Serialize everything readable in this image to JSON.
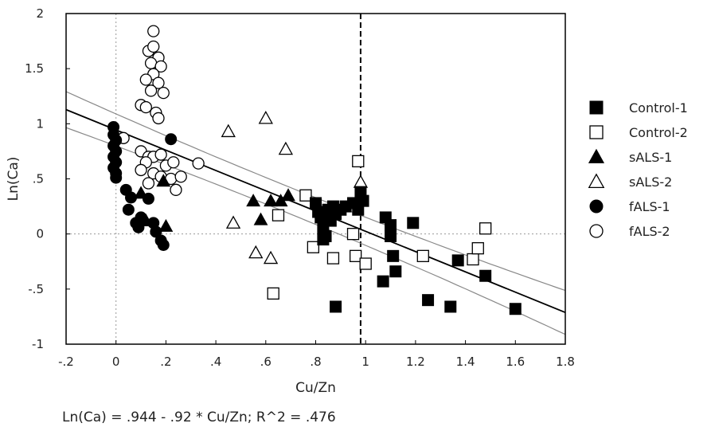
{
  "chart_data": {
    "type": "scatter",
    "title": "",
    "xlabel": "Cu/Zn",
    "ylabel": "Ln(Ca)",
    "xlim": [
      -0.2,
      1.8
    ],
    "ylim": [
      -1,
      2
    ],
    "x_ticks": [
      {
        "value": -0.2,
        "label": "-.2"
      },
      {
        "value": 0,
        "label": "0"
      },
      {
        "value": 0.2,
        "label": ".2"
      },
      {
        "value": 0.4,
        "label": ".4"
      },
      {
        "value": 0.6,
        "label": ".6"
      },
      {
        "value": 0.8,
        "label": ".8"
      },
      {
        "value": 1.0,
        "label": "1"
      },
      {
        "value": 1.2,
        "label": "1.2"
      },
      {
        "value": 1.4,
        "label": "1.4"
      },
      {
        "value": 1.6,
        "label": "1.6"
      },
      {
        "value": 1.8,
        "label": "1.8"
      }
    ],
    "y_ticks": [
      {
        "value": -1,
        "label": "-1"
      },
      {
        "value": -0.5,
        "label": "-.5"
      },
      {
        "value": 0,
        "label": "0"
      },
      {
        "value": 0.5,
        "label": ".5"
      },
      {
        "value": 1,
        "label": "1"
      },
      {
        "value": 1.5,
        "label": "1.5"
      },
      {
        "value": 2,
        "label": "2"
      }
    ],
    "grid": false,
    "reference_lines": {
      "x_zero": 0,
      "y_zero": 0,
      "x_cutoff": 0.98
    },
    "regression": {
      "intercept": 0.944,
      "slope": -0.92,
      "r_squared": 0.476,
      "equation": "Ln(Ca) = .944 - .92 * Cu/Zn; R^2 = .476"
    },
    "legend_position": "right",
    "series": [
      {
        "name": "Control-1",
        "marker": "filled-square",
        "points": [
          [
            0.8,
            0.28
          ],
          [
            0.81,
            0.2
          ],
          [
            0.82,
            0.15
          ],
          [
            0.83,
            0.05
          ],
          [
            0.84,
            -0.02
          ],
          [
            0.85,
            0.22
          ],
          [
            0.86,
            0.12
          ],
          [
            0.87,
            0.25
          ],
          [
            0.88,
            0.18
          ],
          [
            0.9,
            0.22
          ],
          [
            0.92,
            0.25
          ],
          [
            0.95,
            0.28
          ],
          [
            0.97,
            0.22
          ],
          [
            0.99,
            0.3
          ],
          [
            0.98,
            0.38
          ],
          [
            0.83,
            -0.05
          ],
          [
            0.88,
            -0.66
          ],
          [
            1.07,
            -0.43
          ],
          [
            1.08,
            0.15
          ],
          [
            1.1,
            0.08
          ],
          [
            1.1,
            -0.02
          ],
          [
            1.11,
            -0.2
          ],
          [
            1.12,
            -0.34
          ],
          [
            1.19,
            0.1
          ],
          [
            1.25,
            -0.6
          ],
          [
            1.34,
            -0.66
          ],
          [
            1.37,
            -0.24
          ],
          [
            1.48,
            -0.38
          ],
          [
            1.6,
            -0.68
          ]
        ]
      },
      {
        "name": "Control-2",
        "marker": "open-square",
        "points": [
          [
            0.65,
            0.17
          ],
          [
            0.63,
            -0.54
          ],
          [
            0.76,
            0.35
          ],
          [
            0.79,
            -0.12
          ],
          [
            0.87,
            -0.22
          ],
          [
            0.95,
            0.0
          ],
          [
            0.96,
            -0.2
          ],
          [
            0.97,
            0.66
          ],
          [
            1.0,
            -0.27
          ],
          [
            1.23,
            -0.2
          ],
          [
            1.43,
            -0.23
          ],
          [
            1.45,
            -0.13
          ],
          [
            1.48,
            0.05
          ]
        ]
      },
      {
        "name": "sALS-1",
        "marker": "filled-triangle",
        "points": [
          [
            0.1,
            0.37
          ],
          [
            0.12,
            0.12
          ],
          [
            0.19,
            0.48
          ],
          [
            0.2,
            0.07
          ],
          [
            0.55,
            0.3
          ],
          [
            0.58,
            0.13
          ],
          [
            0.62,
            0.3
          ],
          [
            0.66,
            0.3
          ],
          [
            0.69,
            0.35
          ]
        ]
      },
      {
        "name": "sALS-2",
        "marker": "open-triangle",
        "points": [
          [
            0.45,
            0.93
          ],
          [
            0.47,
            0.1
          ],
          [
            0.56,
            -0.17
          ],
          [
            0.6,
            1.05
          ],
          [
            0.62,
            -0.22
          ],
          [
            0.68,
            0.77
          ],
          [
            0.98,
            0.47
          ]
        ]
      },
      {
        "name": "fALS-1",
        "marker": "filled-circle",
        "points": [
          [
            -0.01,
            0.97
          ],
          [
            -0.01,
            0.9
          ],
          [
            0.0,
            0.85
          ],
          [
            -0.01,
            0.8
          ],
          [
            0.0,
            0.75
          ],
          [
            -0.01,
            0.7
          ],
          [
            0.0,
            0.65
          ],
          [
            -0.01,
            0.6
          ],
          [
            0.0,
            0.55
          ],
          [
            0.0,
            0.51
          ],
          [
            0.04,
            0.4
          ],
          [
            0.05,
            0.22
          ],
          [
            0.06,
            0.33
          ],
          [
            0.08,
            0.1
          ],
          [
            0.09,
            0.06
          ],
          [
            0.1,
            0.15
          ],
          [
            0.13,
            0.32
          ],
          [
            0.15,
            0.1
          ],
          [
            0.16,
            0.02
          ],
          [
            0.18,
            -0.06
          ],
          [
            0.19,
            -0.1
          ],
          [
            0.22,
            0.86
          ]
        ]
      },
      {
        "name": "fALS-2",
        "marker": "open-circle",
        "points": [
          [
            0.15,
            1.84
          ],
          [
            0.13,
            1.66
          ],
          [
            0.15,
            1.7
          ],
          [
            0.17,
            1.6
          ],
          [
            0.14,
            1.55
          ],
          [
            0.18,
            1.52
          ],
          [
            0.15,
            1.45
          ],
          [
            0.12,
            1.4
          ],
          [
            0.17,
            1.37
          ],
          [
            0.14,
            1.3
          ],
          [
            0.19,
            1.28
          ],
          [
            0.1,
            1.17
          ],
          [
            0.12,
            1.15
          ],
          [
            0.16,
            1.1
          ],
          [
            0.17,
            1.05
          ],
          [
            0.03,
            0.87
          ],
          [
            0.1,
            0.75
          ],
          [
            0.13,
            0.7
          ],
          [
            0.15,
            0.7
          ],
          [
            0.18,
            0.72
          ],
          [
            0.12,
            0.65
          ],
          [
            0.2,
            0.62
          ],
          [
            0.23,
            0.65
          ],
          [
            0.1,
            0.58
          ],
          [
            0.15,
            0.55
          ],
          [
            0.18,
            0.52
          ],
          [
            0.22,
            0.5
          ],
          [
            0.26,
            0.52
          ],
          [
            0.13,
            0.46
          ],
          [
            0.24,
            0.4
          ],
          [
            0.33,
            0.64
          ]
        ]
      }
    ]
  }
}
